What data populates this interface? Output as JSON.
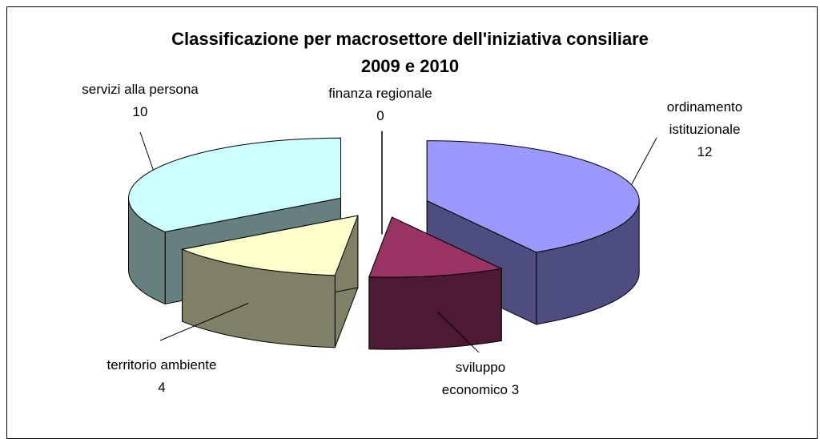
{
  "chart_data": {
    "type": "pie3d",
    "title": [
      "Classificazione per macrosettore dell'iniziativa consiliare",
      "2009 e 2010"
    ],
    "categories": [
      "ordinamento istituzionale",
      "sviluppo economico",
      "territorio ambiente",
      "servizi alla persona",
      "finanza regionale"
    ],
    "values": [
      12,
      3,
      4,
      10,
      0
    ],
    "colors": [
      "#9999ff",
      "#993366",
      "#ffffcc",
      "#ccffff",
      "#000000"
    ],
    "exploded": true
  }
}
